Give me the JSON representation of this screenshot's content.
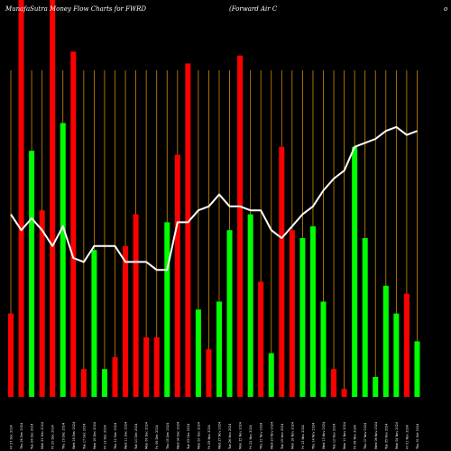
{
  "header": {
    "title_left": "MunafaSutra  Money Flow  Charts for FWRD",
    "title_right": "(Forward Air C",
    "title_right_suffix": "o"
  },
  "colors": {
    "background": "#000000",
    "up": "#00ff00",
    "down": "#ff0000",
    "grid": "#d08a00",
    "line": "#ffffff"
  },
  "chart_data": {
    "type": "bar",
    "title": "MunafaSutra  Money Flow  Charts for FWRD (Forward Air C",
    "ylim": [
      0,
      100
    ],
    "grid": "vertical",
    "bars": [
      {
        "label": "Fri 27 Dec 2024",
        "value": 21,
        "direction": "down"
      },
      {
        "label": "Thu 26 Dec 2024",
        "value": 100,
        "direction": "down"
      },
      {
        "label": "Tue 24 Dec 2024",
        "value": 62,
        "direction": "up"
      },
      {
        "label": "Mon 23 Dec 2024",
        "value": 47,
        "direction": "down"
      },
      {
        "label": "Fri 20 Dec 2024",
        "value": 100,
        "direction": "down"
      },
      {
        "label": "Thu 19 Dec 2024",
        "value": 69,
        "direction": "up"
      },
      {
        "label": "Wed 18 Dec 2024",
        "value": 87,
        "direction": "down"
      },
      {
        "label": "Tue 17 Dec 2024",
        "value": 7,
        "direction": "down"
      },
      {
        "label": "Mon 16 Dec 2024",
        "value": 37,
        "direction": "up"
      },
      {
        "label": "Fri 13 Dec 2024",
        "value": 7,
        "direction": "up"
      },
      {
        "label": "Thu 12 Dec 2024",
        "value": 10,
        "direction": "down"
      },
      {
        "label": "Wed 11 Dec 2024",
        "value": 38,
        "direction": "down"
      },
      {
        "label": "Tue 10 Dec 2024",
        "value": 46,
        "direction": "down"
      },
      {
        "label": "Mon 09 Dec 2024",
        "value": 15,
        "direction": "down"
      },
      {
        "label": "Fri 06 Dec 2024",
        "value": 15,
        "direction": "down"
      },
      {
        "label": "Thu 05 Dec 2024",
        "value": 44,
        "direction": "up"
      },
      {
        "label": "Wed 04 Dec 2024",
        "value": 61,
        "direction": "down"
      },
      {
        "label": "Tue 03 Dec 2024",
        "value": 84,
        "direction": "down"
      },
      {
        "label": "Mon 02 Dec 2024",
        "value": 22,
        "direction": "up"
      },
      {
        "label": "Fri 29 Nov 2024",
        "value": 12,
        "direction": "down"
      },
      {
        "label": "Wed 27 Nov 2024",
        "value": 24,
        "direction": "up"
      },
      {
        "label": "Tue 26 Nov 2024",
        "value": 42,
        "direction": "up"
      },
      {
        "label": "Mon 25 Nov 2024",
        "value": 86,
        "direction": "down"
      },
      {
        "label": "Fri 22 Nov 2024",
        "value": 46,
        "direction": "up"
      },
      {
        "label": "Thu 21 Nov 2024",
        "value": 29,
        "direction": "down"
      },
      {
        "label": "Wed 20 Nov 2024",
        "value": 11,
        "direction": "up"
      },
      {
        "label": "Tue 19 Nov 2024",
        "value": 63,
        "direction": "down"
      },
      {
        "label": "Mon 18 Nov 2024",
        "value": 42,
        "direction": "down"
      },
      {
        "label": "Fri 15 Nov 2024",
        "value": 40,
        "direction": "up"
      },
      {
        "label": "Thu 14 Nov 2024",
        "value": 43,
        "direction": "up"
      },
      {
        "label": "Wed 13 Nov 2024",
        "value": 24,
        "direction": "up"
      },
      {
        "label": "Tue 12 Nov 2024",
        "value": 7,
        "direction": "down"
      },
      {
        "label": "Mon 11 Nov 2024",
        "value": 2,
        "direction": "down"
      },
      {
        "label": "Fri 08 Nov 2024",
        "value": 63,
        "direction": "up"
      },
      {
        "label": "Thu 07 Nov 2024",
        "value": 40,
        "direction": "up"
      },
      {
        "label": "Wed 06 Nov 2024",
        "value": 5,
        "direction": "up"
      },
      {
        "label": "Tue 05 Nov 2024",
        "value": 28,
        "direction": "up"
      },
      {
        "label": "Mon 04 Nov 2024",
        "value": 21,
        "direction": "up"
      },
      {
        "label": "Fri 01 Nov 2024",
        "value": 26,
        "direction": "down"
      },
      {
        "label": "Thu 31 Oct 2024",
        "value": 14,
        "direction": "up"
      }
    ],
    "line_series": [
      {
        "name": "",
        "values": [
          46,
          42,
          45,
          42,
          38,
          43,
          35,
          34,
          38,
          38,
          38,
          34,
          34,
          34,
          32,
          32,
          44,
          44,
          47,
          48,
          51,
          48,
          48,
          47,
          47,
          42,
          40,
          43,
          46,
          48,
          52,
          55,
          57,
          63,
          64,
          65,
          67,
          68,
          66,
          67
        ]
      }
    ],
    "line_ylim": [
      0,
      100
    ]
  }
}
